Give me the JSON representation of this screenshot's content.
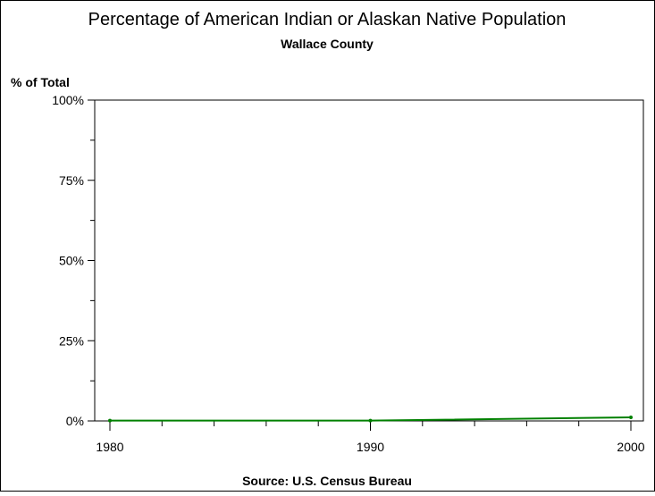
{
  "chart_data": {
    "type": "line",
    "title": "Percentage of American Indian or Alaskan Native Population",
    "subtitle": "Wallace County",
    "ylabel": "% of Total",
    "footnote": "Source: U.S. Census Bureau",
    "x": [
      1980,
      1990,
      2000
    ],
    "xlim": [
      1980,
      2000
    ],
    "x_ticks": [
      "1980",
      "1990",
      "2000"
    ],
    "ylim": [
      0,
      100
    ],
    "y_ticks": [
      "0%",
      "25%",
      "50%",
      "75%",
      "100%"
    ],
    "series": [
      {
        "values": [
          0.1,
          0.1,
          1.1
        ],
        "color": "#008000"
      }
    ],
    "grid": false,
    "frame_color": "#000000"
  }
}
